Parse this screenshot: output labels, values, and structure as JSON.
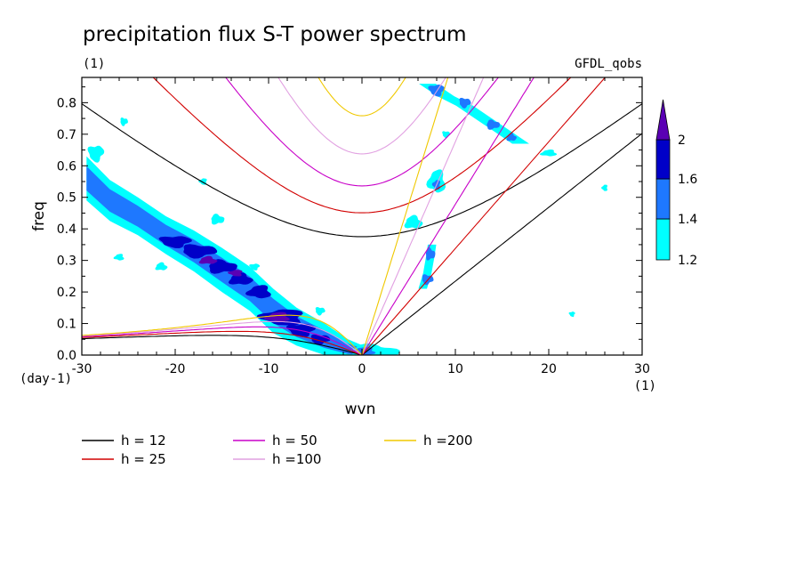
{
  "chart_data": {
    "type": "contour",
    "title": "precipitation flux S-T power spectrum",
    "units_label": "(1)",
    "model_label": "GFDL_qobs",
    "xlabel": "wvn",
    "ylabel": "freq",
    "x_unit_label": "(1)",
    "y_unit_label": "(day-1)",
    "xlim": [
      -30,
      30
    ],
    "ylim": [
      0,
      0.88
    ],
    "x_ticks": [
      -30,
      -20,
      -10,
      0,
      10,
      20,
      30
    ],
    "x_tick_labels": [
      "-30",
      "-20",
      "-10",
      "0",
      "10",
      "20",
      "30"
    ],
    "y_ticks": [
      0,
      0.1,
      0.2,
      0.3,
      0.4,
      0.5,
      0.6,
      0.7,
      0.8
    ],
    "y_tick_labels": [
      "0.0",
      "0.1",
      "0.2",
      "0.3",
      "0.4",
      "0.5",
      "0.6",
      "0.7",
      "0.8"
    ],
    "colorbar": {
      "levels": [
        1.2,
        1.4,
        1.6,
        2
      ],
      "labels": [
        "1.2",
        "1.4",
        "1.6",
        "2"
      ],
      "colors": [
        "#00ffff",
        "#1e78ff",
        "#0000c8",
        "#5a00b4"
      ]
    },
    "dispersion_curves": [
      {
        "label": "h = 12",
        "h": 12,
        "color": "#000000"
      },
      {
        "label": "h = 25",
        "h": 25,
        "color": "#d20000"
      },
      {
        "label": "h = 50",
        "h": 50,
        "color": "#c800c8"
      },
      {
        "label": "h =100",
        "h": 100,
        "color": "#e1a0e1"
      },
      {
        "label": "h =200",
        "h": 200,
        "color": "#f0c800"
      }
    ],
    "spectral_peaks": [
      {
        "wvn": -28.5,
        "freq": 0.54,
        "level": 1.2
      },
      {
        "wvn": -25,
        "freq": 0.45,
        "level": 1.2
      },
      {
        "wvn": -21,
        "freq": 0.37,
        "level": 1.4
      },
      {
        "wvn": -18,
        "freq": 0.33,
        "level": 1.6
      },
      {
        "wvn": -15,
        "freq": 0.27,
        "level": 2
      },
      {
        "wvn": -11,
        "freq": 0.2,
        "level": 1.6
      },
      {
        "wvn": -8,
        "freq": 0.12,
        "level": 2
      },
      {
        "wvn": -5,
        "freq": 0.06,
        "level": 1.6
      },
      {
        "wvn": -1.5,
        "freq": 0.02,
        "level": 1.6
      },
      {
        "wvn": 1.5,
        "freq": 0.01,
        "level": 1.2
      },
      {
        "wvn": 7,
        "freq": 0.35,
        "level": 1.4
      },
      {
        "wvn": 8,
        "freq": 0.55,
        "level": 1.4
      },
      {
        "wvn": 8,
        "freq": 0.85,
        "level": 1.4
      },
      {
        "wvn": 11,
        "freq": 0.8,
        "level": 1.4
      },
      {
        "wvn": 14.5,
        "freq": 0.72,
        "level": 1.4
      }
    ]
  }
}
